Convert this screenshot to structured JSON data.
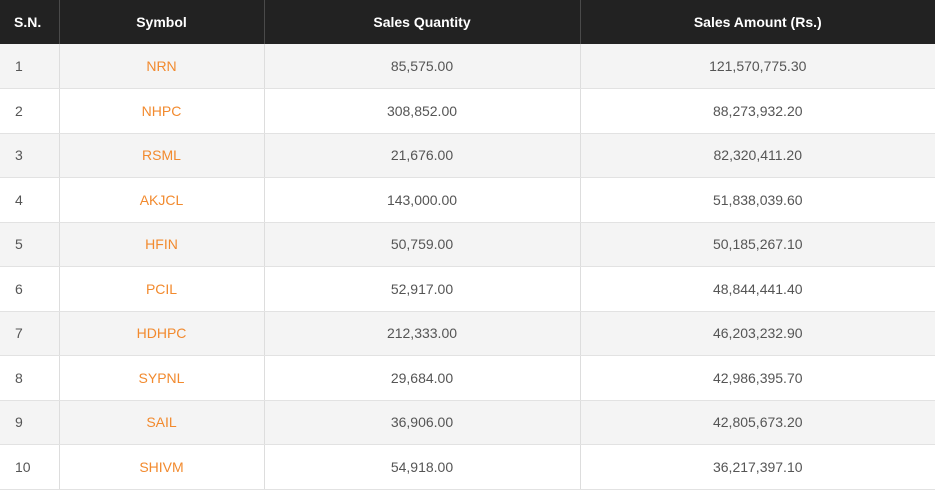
{
  "table": {
    "headers": {
      "sn": "S.N.",
      "symbol": "Symbol",
      "sales_quantity": "Sales Quantity",
      "sales_amount": "Sales Amount (Rs.)"
    },
    "rows": [
      {
        "sn": "1",
        "symbol": "NRN",
        "quantity": "85,575.00",
        "amount": "121,570,775.30"
      },
      {
        "sn": "2",
        "symbol": "NHPC",
        "quantity": "308,852.00",
        "amount": "88,273,932.20"
      },
      {
        "sn": "3",
        "symbol": "RSML",
        "quantity": "21,676.00",
        "amount": "82,320,411.20"
      },
      {
        "sn": "4",
        "symbol": "AKJCL",
        "quantity": "143,000.00",
        "amount": "51,838,039.60"
      },
      {
        "sn": "5",
        "symbol": "HFIN",
        "quantity": "50,759.00",
        "amount": "50,185,267.10"
      },
      {
        "sn": "6",
        "symbol": "PCIL",
        "quantity": "52,917.00",
        "amount": "48,844,441.40"
      },
      {
        "sn": "7",
        "symbol": "HDHPC",
        "quantity": "212,333.00",
        "amount": "46,203,232.90"
      },
      {
        "sn": "8",
        "symbol": "SYPNL",
        "quantity": "29,684.00",
        "amount": "42,986,395.70"
      },
      {
        "sn": "9",
        "symbol": "SAIL",
        "quantity": "36,906.00",
        "amount": "42,805,673.20"
      },
      {
        "sn": "10",
        "symbol": "SHIVM",
        "quantity": "54,918.00",
        "amount": "36,217,397.10"
      }
    ]
  },
  "colors": {
    "header_background": "#222222",
    "header_text": "#ffffff",
    "symbol_link": "#f28a2e",
    "row_alt": "#f4f4f4",
    "body_text": "#555555"
  }
}
